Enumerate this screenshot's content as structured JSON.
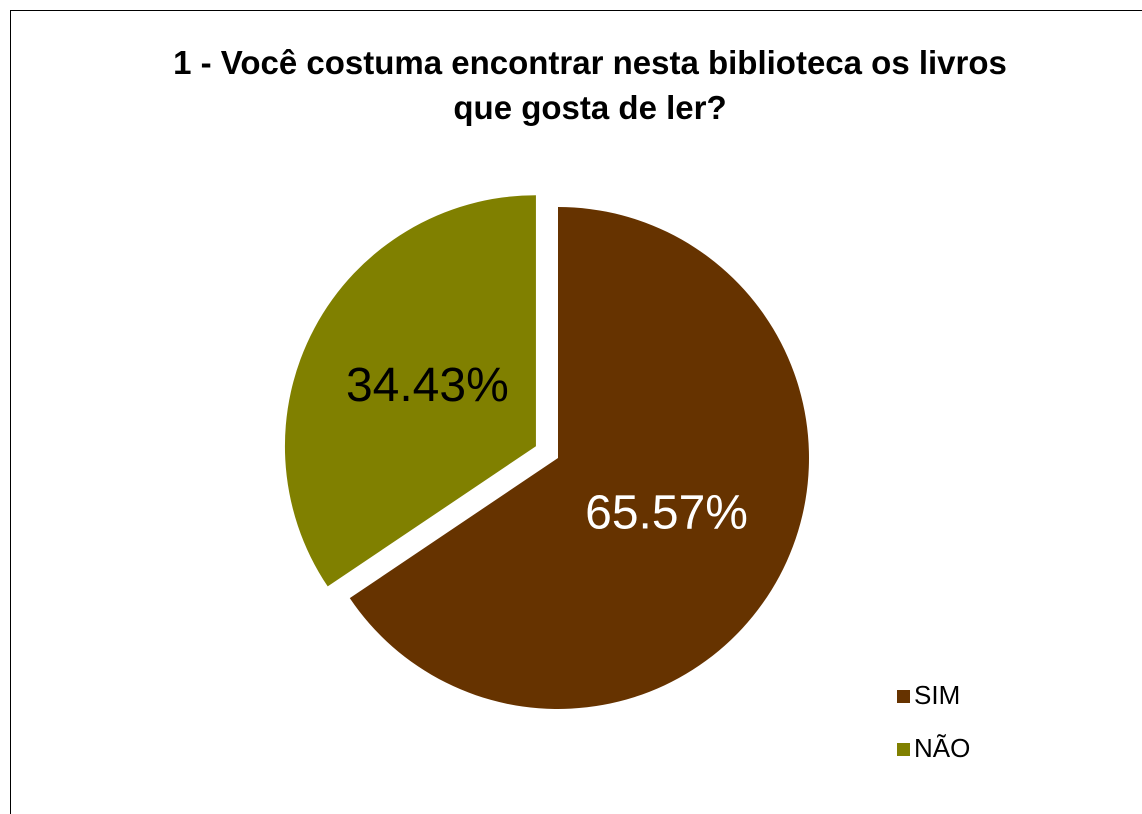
{
  "chart_data": {
    "type": "pie",
    "title": "1 - Você costuma encontrar nesta biblioteca os livros que gosta de ler?",
    "categories": [
      "SIM",
      "NÃO"
    ],
    "values": [
      65.57,
      34.43
    ],
    "value_labels": [
      "65.57%",
      "34.43%"
    ],
    "colors": [
      "#663300",
      "#808000"
    ],
    "label_colors": [
      "#ffffff",
      "#000000"
    ],
    "legend": "right"
  }
}
